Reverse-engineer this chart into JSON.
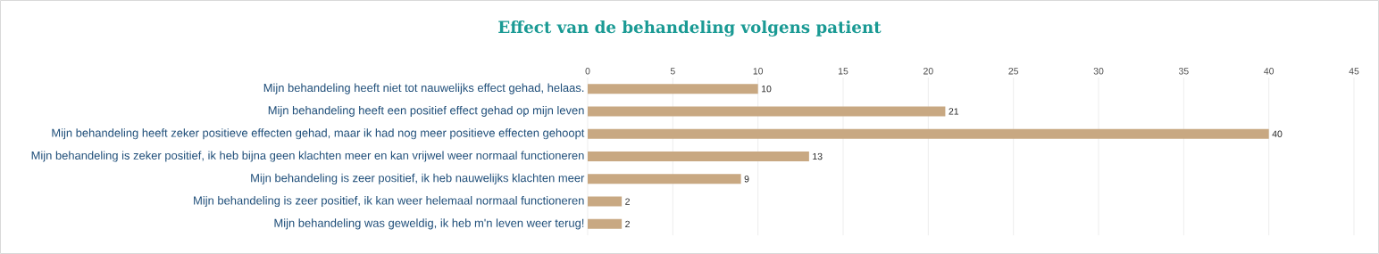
{
  "chart_data": {
    "type": "bar",
    "orientation": "horizontal",
    "title": "Effect van de behandeling volgens patient",
    "categories": [
      "Mijn behandeling heeft niet tot nauwelijks effect gehad, helaas.",
      "Mijn behandeling heeft een positief effect gehad op mijn leven",
      "Mijn behandeling heeft zeker positieve effecten gehad, maar ik had nog meer positieve effecten gehoopt",
      "Mijn behandeling is zeker positief, ik heb bijna geen klachten meer en kan vrijwel weer normaal functioneren",
      "Mijn behandeling is zeer positief, ik heb nauwelijks klachten meer",
      "Mijn behandeling is zeer positief, ik kan weer helemaal normaal functioneren",
      "Mijn behandeling was geweldig, ik heb m'n leven weer terug!"
    ],
    "values": [
      10,
      21,
      40,
      13,
      9,
      2,
      2
    ],
    "color": "#c8a882",
    "xlim": [
      0,
      45
    ],
    "xticks": [
      0,
      5,
      10,
      15,
      20,
      25,
      30,
      35,
      40,
      45
    ],
    "grid": "x",
    "data_labels": true
  }
}
